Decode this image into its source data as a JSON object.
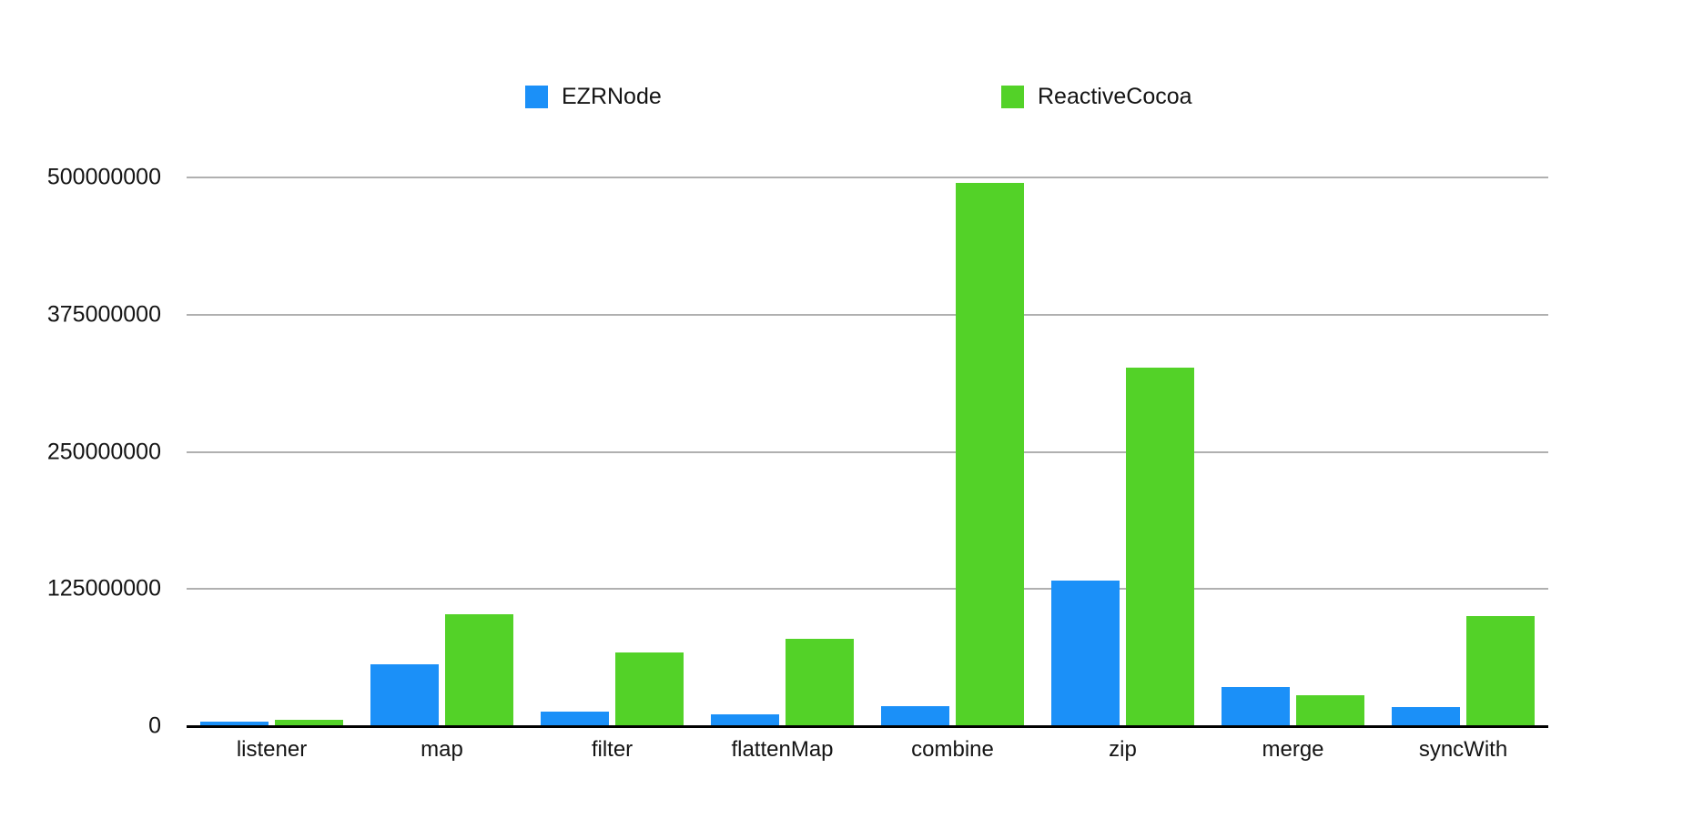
{
  "chart_data": {
    "type": "bar",
    "title": "",
    "xlabel": "",
    "ylabel": "",
    "categories": [
      "listener",
      "map",
      "filter",
      "flattenMap",
      "combine",
      "zip",
      "merge",
      "syncWith"
    ],
    "series": [
      {
        "name": "EZRNode",
        "color": "#1b90f8",
        "values": [
          4000000,
          56000000,
          13000000,
          11000000,
          18000000,
          133000000,
          36000000,
          17000000
        ]
      },
      {
        "name": "ReactiveCocoa",
        "color": "#53d228",
        "values": [
          6000000,
          102000000,
          67000000,
          80000000,
          495000000,
          327000000,
          28000000,
          100000000
        ]
      }
    ],
    "ylim": [
      0,
      500000000
    ],
    "yticks": [
      0,
      125000000,
      250000000,
      375000000,
      500000000
    ],
    "ytick_labels": [
      "0",
      "125000000",
      "250000000",
      "375000000",
      "500000000"
    ],
    "grid": true,
    "grid_color": "#b0b0b0",
    "axis_color": "#000000",
    "legend_position": "top",
    "background_color": "#ffffff"
  }
}
